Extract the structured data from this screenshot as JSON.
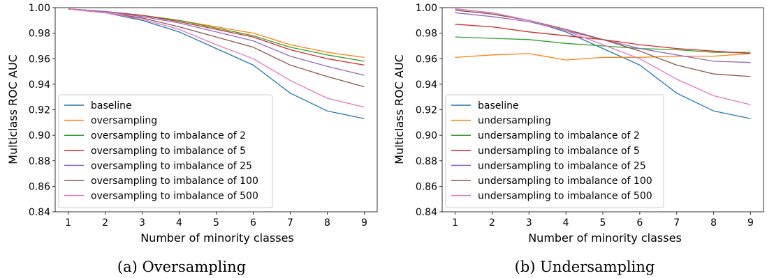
{
  "chart_data": [
    {
      "type": "line",
      "caption": "(a) Oversampling",
      "xlabel": "Number of minority classes",
      "ylabel": "Multiclass ROC AUC",
      "x": [
        1,
        2,
        3,
        4,
        5,
        6,
        7,
        8,
        9
      ],
      "xlim": [
        0.65,
        9.35
      ],
      "ylim": [
        0.84,
        1.0
      ],
      "yticks": [
        "0.84",
        "0.86",
        "0.88",
        "0.90",
        "0.92",
        "0.94",
        "0.96",
        "0.98",
        "1.00"
      ],
      "xticks": [
        "1",
        "2",
        "3",
        "4",
        "5",
        "6",
        "7",
        "8",
        "9"
      ],
      "grid": false,
      "legend_position": "lower-left",
      "series": [
        {
          "name": "baseline",
          "color": "#1f77b4",
          "values": [
            0.999,
            0.996,
            0.99,
            0.981,
            0.968,
            0.955,
            0.933,
            0.919,
            0.913
          ]
        },
        {
          "name": "oversampling",
          "color": "#ff7f0e",
          "values": [
            0.999,
            0.997,
            0.994,
            0.99,
            0.985,
            0.98,
            0.971,
            0.965,
            0.961
          ]
        },
        {
          "name": "oversampling to imbalance of 2",
          "color": "#2ca02c",
          "values": [
            0.999,
            0.997,
            0.994,
            0.99,
            0.984,
            0.978,
            0.969,
            0.963,
            0.958
          ]
        },
        {
          "name": "oversampling to imbalance of 5",
          "color": "#d62728",
          "values": [
            0.999,
            0.997,
            0.994,
            0.989,
            0.983,
            0.977,
            0.967,
            0.96,
            0.955
          ]
        },
        {
          "name": "oversampling to imbalance of 25",
          "color": "#9467bd",
          "values": [
            0.999,
            0.997,
            0.993,
            0.988,
            0.981,
            0.974,
            0.962,
            0.954,
            0.947
          ]
        },
        {
          "name": "oversampling to imbalance of 100",
          "color": "#8c564b",
          "values": [
            0.999,
            0.996,
            0.992,
            0.985,
            0.977,
            0.969,
            0.955,
            0.946,
            0.938
          ]
        },
        {
          "name": "oversampling to imbalance of 500",
          "color": "#e377c2",
          "values": [
            0.999,
            0.996,
            0.991,
            0.983,
            0.971,
            0.96,
            0.943,
            0.929,
            0.922
          ]
        }
      ]
    },
    {
      "type": "line",
      "caption": "(b) Undersampling",
      "xlabel": "Number of minority classes",
      "ylabel": "Multiclass ROC AUC",
      "x": [
        1,
        2,
        3,
        4,
        5,
        6,
        7,
        8,
        9
      ],
      "xlim": [
        0.65,
        9.35
      ],
      "ylim": [
        0.84,
        1.0
      ],
      "yticks": [
        "0.84",
        "0.86",
        "0.88",
        "0.90",
        "0.92",
        "0.94",
        "0.96",
        "0.98",
        "1.00"
      ],
      "xticks": [
        "1",
        "2",
        "3",
        "4",
        "5",
        "6",
        "7",
        "8",
        "9"
      ],
      "grid": false,
      "legend_position": "lower-left",
      "series": [
        {
          "name": "baseline",
          "color": "#1f77b4",
          "values": [
            0.999,
            0.996,
            0.99,
            0.981,
            0.968,
            0.955,
            0.933,
            0.919,
            0.913
          ]
        },
        {
          "name": "undersampling",
          "color": "#ff7f0e",
          "values": [
            0.961,
            0.963,
            0.964,
            0.959,
            0.961,
            0.961,
            0.962,
            0.962,
            0.964
          ]
        },
        {
          "name": "undersampling to imbalance of 2",
          "color": "#2ca02c",
          "values": [
            0.977,
            0.976,
            0.975,
            0.972,
            0.97,
            0.968,
            0.967,
            0.965,
            0.965
          ]
        },
        {
          "name": "undersampling to imbalance of 5",
          "color": "#d62728",
          "values": [
            0.987,
            0.985,
            0.981,
            0.978,
            0.975,
            0.971,
            0.968,
            0.966,
            0.964
          ]
        },
        {
          "name": "undersampling to imbalance of 25",
          "color": "#9467bd",
          "values": [
            0.996,
            0.993,
            0.989,
            0.982,
            0.975,
            0.968,
            0.963,
            0.958,
            0.957
          ]
        },
        {
          "name": "undersampling to imbalance of 100",
          "color": "#8c564b",
          "values": [
            0.998,
            0.995,
            0.99,
            0.983,
            0.975,
            0.966,
            0.955,
            0.948,
            0.946
          ]
        },
        {
          "name": "undersampling to imbalance of 500",
          "color": "#e377c2",
          "values": [
            0.999,
            0.996,
            0.99,
            0.982,
            0.971,
            0.96,
            0.944,
            0.931,
            0.924
          ]
        }
      ]
    }
  ]
}
